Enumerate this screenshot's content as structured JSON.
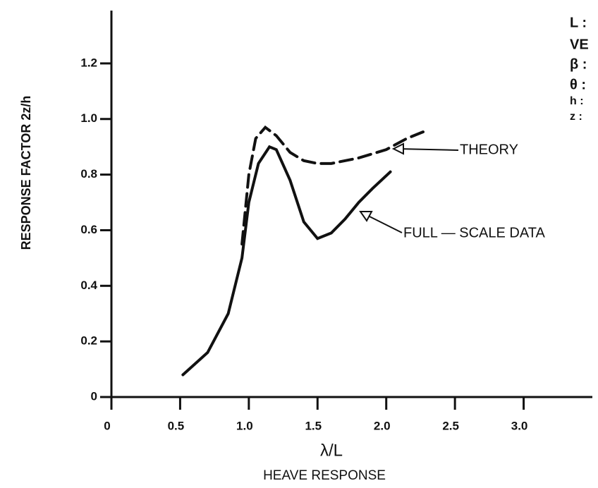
{
  "chart_data": {
    "type": "line",
    "title": "HEAVE RESPONSE",
    "x_label": "λ/L",
    "y_label": "RESPONSE  FACTOR  2z/h",
    "xlim": [
      0,
      3.5
    ],
    "ylim": [
      0,
      1.39
    ],
    "xticks": [
      0,
      0.5,
      {
        "value": 1,
        "label": "1.0"
      },
      1.5,
      {
        "value": 2,
        "label": "2.0"
      },
      2.5,
      {
        "value": 3,
        "label": "3.0"
      }
    ],
    "yticks": [
      0,
      0.2,
      0.4,
      0.6,
      0.8,
      {
        "value": 1,
        "label": "1.0"
      },
      1.2
    ],
    "grid": false,
    "series": [
      {
        "name": "THEORY",
        "color": "#111111",
        "dashed": true,
        "x": [
          0.95,
          1.0,
          1.05,
          1.12,
          1.2,
          1.3,
          1.4,
          1.5,
          1.6,
          1.8,
          2.0,
          2.15,
          2.3
        ],
        "values": [
          0.55,
          0.8,
          0.93,
          0.97,
          0.94,
          0.88,
          0.85,
          0.84,
          0.84,
          0.86,
          0.89,
          0.93,
          0.96
        ]
      },
      {
        "name": "FULL - SCALE DATA",
        "color": "#111111",
        "dashed": false,
        "x": [
          0.52,
          0.7,
          0.85,
          0.95,
          1.0,
          1.07,
          1.15,
          1.2,
          1.3,
          1.4,
          1.5,
          1.6,
          1.7,
          1.8,
          1.9,
          2.03
        ],
        "values": [
          0.08,
          0.16,
          0.3,
          0.5,
          0.7,
          0.84,
          0.9,
          0.89,
          0.78,
          0.63,
          0.57,
          0.59,
          0.64,
          0.7,
          0.75,
          0.81
        ]
      }
    ],
    "annotations": [
      "THEORY",
      "FULL — SCALE  DATA"
    ],
    "side_notes": [
      "L :",
      "VE",
      "β :",
      "θ :",
      "h :",
      "z :"
    ]
  }
}
